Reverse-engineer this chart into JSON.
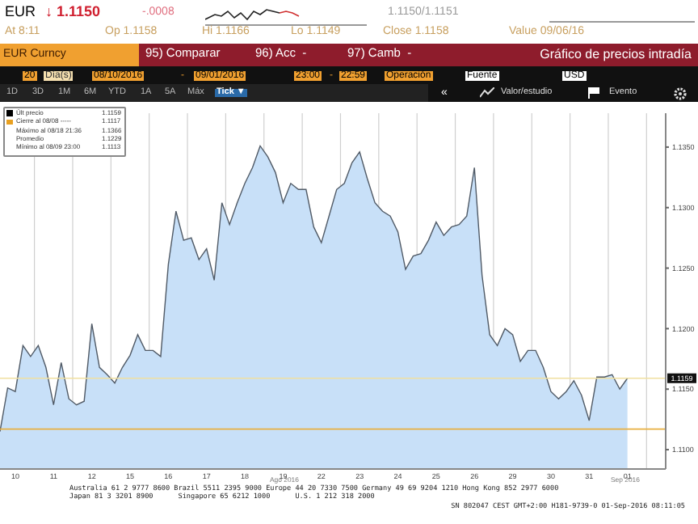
{
  "chart_data": {
    "type": "area",
    "title": "Gráfico de precios intradía",
    "categories": [
      null,
      null,
      "10",
      null,
      null,
      null,
      null,
      "11",
      null,
      null,
      null,
      null,
      "12",
      null,
      null,
      null,
      null,
      "15",
      null,
      null,
      null,
      null,
      "16",
      null,
      null,
      null,
      null,
      "17",
      null,
      null,
      null,
      null,
      "18",
      null,
      null,
      null,
      null,
      "19",
      null,
      null,
      null,
      null,
      "22",
      null,
      null,
      null,
      null,
      "23",
      null,
      null,
      null,
      null,
      "24",
      null,
      null,
      null,
      null,
      "25",
      null,
      null,
      null,
      null,
      "26",
      null,
      null,
      null,
      null,
      "29",
      null,
      null,
      null,
      null,
      "30",
      null,
      null,
      null,
      null,
      "31",
      null,
      null,
      null,
      null,
      "01",
      null,
      null,
      null,
      null,
      null
    ],
    "series": [
      {
        "color": "#c8e0f8",
        "values": [
          1.1115,
          1.1151,
          1.1148,
          1.1186,
          1.1177,
          1.1186,
          1.1168,
          1.1137,
          1.1172,
          1.1142,
          1.1137,
          1.114,
          1.1204,
          1.1168,
          1.1162,
          1.1155,
          1.1168,
          1.1178,
          1.1195,
          1.1182,
          1.1182,
          1.1177,
          1.1253,
          1.1297,
          1.1273,
          1.1275,
          1.1257,
          1.1266,
          1.124,
          1.1304,
          1.1286,
          1.1304,
          1.132,
          1.1333,
          1.1351,
          1.1342,
          1.1329,
          1.1304,
          1.132,
          1.1315,
          1.1315,
          1.1284,
          1.1271,
          1.1293,
          1.1315,
          1.132,
          1.1337,
          1.1346,
          1.1324,
          1.1304,
          1.1297,
          1.1293,
          1.128,
          1.1249,
          1.126,
          1.1262,
          1.1273,
          1.1288,
          1.1277,
          1.1284,
          1.1286,
          1.1293,
          1.1333,
          1.1244,
          1.1195,
          1.1186,
          1.12,
          1.1195,
          1.1173,
          1.1182,
          1.1182,
          1.1168,
          1.1148,
          1.1142,
          1.1148,
          1.1157,
          1.1145,
          1.1124,
          1.116,
          1.116,
          1.1162,
          1.115,
          1.1159,
          null,
          null,
          null,
          null,
          null
        ]
      }
    ],
    "ylim": [
      1.1084,
      1.1378
    ],
    "yticks": [
      {
        "value": 1.11,
        "label": "1.1100"
      },
      {
        "value": 1.115,
        "label": "1.1150"
      },
      {
        "value": 1.12,
        "label": "1.1200"
      },
      {
        "value": 1.125,
        "label": "1.1250"
      },
      {
        "value": 1.13,
        "label": "1.1300"
      },
      {
        "value": 1.135,
        "label": "1.1350"
      }
    ],
    "grid": "x",
    "ref_lines": [
      {
        "axis": "y",
        "value": 1.1117,
        "color": "#e8b040"
      },
      {
        "axis": "y",
        "value": 1.1159,
        "label": "1.1159",
        "color": "#f0e0a0"
      }
    ],
    "annotations": [
      "EUR",
      "↓ 1.1150",
      "-.0008",
      "1.1150/1.1151",
      "At 8:11",
      "Op 1.1158",
      "Hi 1.1166",
      "Lo 1.1149",
      "Close 1.1158",
      "Value 09/06/16",
      "EUR Curncy",
      "95) Comparar",
      "96) Acc  -",
      "97) Camb  -",
      "20",
      "Día(s)",
      "08/10/2016",
      "-",
      "09/01/2016",
      "23:00",
      "-",
      "22:59",
      "Operación",
      "Fuente",
      "USD",
      "1D",
      "3D",
      "1M",
      "6M",
      "YTD",
      "1A",
      "5A",
      "Máx",
      "Tick ▼",
      "«",
      "Valor/estudio",
      "Evento",
      "Últ precio",
      "1.1159",
      "Cierre al 08/08 -----",
      "1.1117",
      "Máximo al 08/18 21:36",
      "1.1366",
      "Promedio",
      "1.1229",
      "Mínimo al 08/09 23:00",
      "1.1113",
      "Australia 61 2 9777 8600 Brazil 5511 2395 9000 Europe 44 20 7330 7500 Germany 49 69 9204 1210 Hong Kong 852 2977 6000",
      "Japan 81 3 3201 8900      Singapore 65 6212 1000      U.S. 1 212 318 2000",
      "SN 802047 CEST GMT+2:00 H181-9739-0 01-Sep-2016 08:11:05",
      "Ago 2016",
      "Sep 2016"
    ]
  }
}
